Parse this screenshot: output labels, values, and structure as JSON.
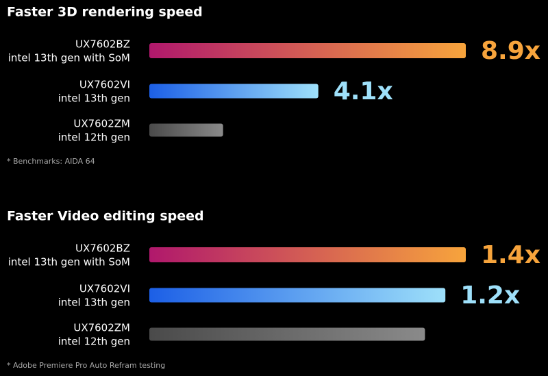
{
  "chart_data": [
    {
      "type": "bar",
      "title": "Faster 3D rendering speed",
      "categories": [
        [
          "UX7602BZ",
          "intel 13th gen  with SoM"
        ],
        [
          "UX7602VI",
          "intel 13th gen"
        ],
        [
          "UX7602ZM",
          "intel 12th gen"
        ]
      ],
      "values": [
        8.9,
        4.1,
        1
      ],
      "value_labels": [
        "8.9x",
        "4.1x",
        null
      ],
      "colors": [
        [
          "#b0186c",
          "#f7a43c"
        ],
        [
          "#1c5fe6",
          "#9ee0fa"
        ],
        [
          "#4a4a4a",
          "#8a8a8a"
        ]
      ],
      "xlim": [
        -1.4,
        8.9
      ],
      "note": "* Benchmarks: AIDA 64"
    },
    {
      "type": "bar",
      "title": "Faster Video editing speed",
      "categories": [
        [
          "UX7602BZ",
          "intel 13th gen  with SoM"
        ],
        [
          "UX7602VI",
          "intel 13th gen"
        ],
        [
          "UX7602ZM",
          "intel 12th gen"
        ]
      ],
      "values": [
        1.4,
        1.2,
        1
      ],
      "value_labels": [
        "1.4x",
        "1.2x",
        null
      ],
      "colors": [
        [
          "#b0186c",
          "#f7a43c"
        ],
        [
          "#1c5fe6",
          "#9ee0fa"
        ],
        [
          "#4a4a4a",
          "#8a8a8a"
        ]
      ],
      "xlim": [
        -1.7,
        1.4
      ],
      "note": "* Adobe Premiere Pro Auto Refram testing"
    }
  ]
}
